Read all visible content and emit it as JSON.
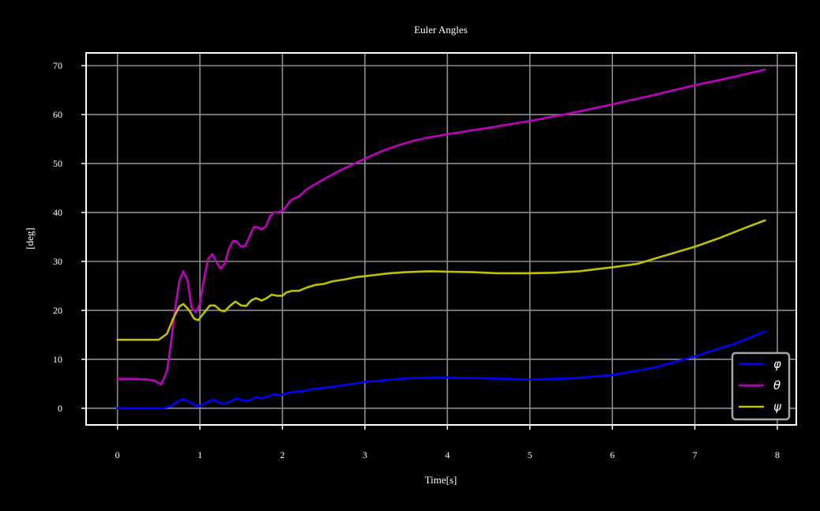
{
  "chart_data": {
    "type": "line",
    "title": "Euler Angles",
    "xlabel": "Time[s]",
    "ylabel": "[deg]",
    "xlim": [
      -0.38,
      8.23
    ],
    "ylim": [
      -3.4,
      72.6
    ],
    "xticks": [
      0,
      1,
      2,
      3,
      4,
      5,
      6,
      7,
      8
    ],
    "yticks": [
      0,
      10,
      20,
      30,
      40,
      50,
      60,
      70
    ],
    "grid": true,
    "legend_position": "bottom-right",
    "background": "#000000",
    "grid_color": "#8c8c8c",
    "series": [
      {
        "name": "φ",
        "color": "#0000ff",
        "points": [
          [
            0,
            0
          ],
          [
            0.3,
            0
          ],
          [
            0.55,
            0
          ],
          [
            0.65,
            0.4
          ],
          [
            0.72,
            1.3
          ],
          [
            0.8,
            1.9
          ],
          [
            0.88,
            1.2
          ],
          [
            0.95,
            0.5
          ],
          [
            1.0,
            0.5
          ],
          [
            1.08,
            1.2
          ],
          [
            1.15,
            1.8
          ],
          [
            1.22,
            1.2
          ],
          [
            1.3,
            0.9
          ],
          [
            1.38,
            1.5
          ],
          [
            1.45,
            2.0
          ],
          [
            1.52,
            1.5
          ],
          [
            1.6,
            1.6
          ],
          [
            1.68,
            2.3
          ],
          [
            1.75,
            2.0
          ],
          [
            1.82,
            2.4
          ],
          [
            1.9,
            2.9
          ],
          [
            1.97,
            2.6
          ],
          [
            2.05,
            3.1
          ],
          [
            2.15,
            3.4
          ],
          [
            2.25,
            3.5
          ],
          [
            2.35,
            3.9
          ],
          [
            2.5,
            4.2
          ],
          [
            2.7,
            4.6
          ],
          [
            3.0,
            5.4
          ],
          [
            3.5,
            6.1
          ],
          [
            3.8,
            6.3
          ],
          [
            4.0,
            6.3
          ],
          [
            4.5,
            6.1
          ],
          [
            5.0,
            5.9
          ],
          [
            5.5,
            6.1
          ],
          [
            6.0,
            6.8
          ],
          [
            6.5,
            8.3
          ],
          [
            7.0,
            10.6
          ],
          [
            7.5,
            13.3
          ],
          [
            7.85,
            15.7
          ]
        ]
      },
      {
        "name": "θ",
        "color": "#c000c0",
        "points": [
          [
            0,
            6.0
          ],
          [
            0.2,
            6.0
          ],
          [
            0.35,
            5.9
          ],
          [
            0.45,
            5.6
          ],
          [
            0.53,
            4.9
          ],
          [
            0.6,
            7.5
          ],
          [
            0.65,
            13.5
          ],
          [
            0.7,
            20.5
          ],
          [
            0.75,
            26.0
          ],
          [
            0.8,
            28.0
          ],
          [
            0.85,
            26.2
          ],
          [
            0.9,
            20.5
          ],
          [
            0.95,
            19.6
          ],
          [
            1.0,
            21.5
          ],
          [
            1.05,
            26.5
          ],
          [
            1.1,
            30.5
          ],
          [
            1.15,
            31.5
          ],
          [
            1.2,
            29.8
          ],
          [
            1.25,
            28.5
          ],
          [
            1.3,
            29.5
          ],
          [
            1.35,
            32.5
          ],
          [
            1.4,
            34.2
          ],
          [
            1.45,
            34.0
          ],
          [
            1.5,
            33.0
          ],
          [
            1.55,
            33.2
          ],
          [
            1.6,
            35.0
          ],
          [
            1.65,
            37.0
          ],
          [
            1.7,
            37.0
          ],
          [
            1.75,
            36.5
          ],
          [
            1.8,
            37.2
          ],
          [
            1.85,
            39.2
          ],
          [
            1.9,
            40.0
          ],
          [
            1.95,
            40.1
          ],
          [
            2.0,
            40.3
          ],
          [
            2.05,
            41.3
          ],
          [
            2.1,
            42.5
          ],
          [
            2.2,
            43.3
          ],
          [
            2.3,
            44.8
          ],
          [
            2.4,
            45.8
          ],
          [
            2.5,
            46.8
          ],
          [
            2.6,
            47.7
          ],
          [
            2.7,
            48.6
          ],
          [
            2.8,
            49.4
          ],
          [
            3.0,
            51.0
          ],
          [
            3.2,
            52.5
          ],
          [
            3.4,
            53.7
          ],
          [
            3.6,
            54.7
          ],
          [
            3.8,
            55.4
          ],
          [
            4.0,
            56.0
          ],
          [
            4.5,
            57.3
          ],
          [
            5.0,
            58.7
          ],
          [
            5.5,
            60.3
          ],
          [
            6.0,
            62.1
          ],
          [
            6.5,
            64.0
          ],
          [
            7.0,
            66.0
          ],
          [
            7.5,
            67.8
          ],
          [
            7.85,
            69.2
          ]
        ]
      },
      {
        "name": "ψ",
        "color": "#c0c000",
        "points": [
          [
            0,
            14.0
          ],
          [
            0.3,
            14.0
          ],
          [
            0.5,
            14.0
          ],
          [
            0.6,
            15.2
          ],
          [
            0.68,
            18.5
          ],
          [
            0.75,
            20.8
          ],
          [
            0.8,
            21.3
          ],
          [
            0.87,
            20.0
          ],
          [
            0.93,
            18.3
          ],
          [
            0.98,
            18.0
          ],
          [
            1.05,
            19.5
          ],
          [
            1.12,
            21.0
          ],
          [
            1.18,
            21.0
          ],
          [
            1.25,
            20.0
          ],
          [
            1.3,
            19.8
          ],
          [
            1.37,
            21.0
          ],
          [
            1.43,
            21.8
          ],
          [
            1.5,
            21.0
          ],
          [
            1.56,
            20.9
          ],
          [
            1.62,
            22.0
          ],
          [
            1.68,
            22.5
          ],
          [
            1.75,
            22.0
          ],
          [
            1.8,
            22.4
          ],
          [
            1.87,
            23.2
          ],
          [
            1.93,
            23.0
          ],
          [
            2.0,
            23.0
          ],
          [
            2.05,
            23.7
          ],
          [
            2.12,
            24.0
          ],
          [
            2.2,
            24.0
          ],
          [
            2.3,
            24.7
          ],
          [
            2.4,
            25.2
          ],
          [
            2.5,
            25.4
          ],
          [
            2.6,
            25.9
          ],
          [
            2.75,
            26.3
          ],
          [
            2.9,
            26.8
          ],
          [
            3.1,
            27.2
          ],
          [
            3.3,
            27.6
          ],
          [
            3.5,
            27.8
          ],
          [
            3.8,
            28.0
          ],
          [
            4.0,
            27.9
          ],
          [
            4.3,
            27.8
          ],
          [
            4.6,
            27.6
          ],
          [
            5.0,
            27.6
          ],
          [
            5.3,
            27.7
          ],
          [
            5.6,
            28.0
          ],
          [
            6.0,
            28.8
          ],
          [
            6.3,
            29.5
          ],
          [
            6.6,
            31.0
          ],
          [
            7.0,
            33.0
          ],
          [
            7.3,
            34.8
          ],
          [
            7.6,
            36.8
          ],
          [
            7.85,
            38.4
          ]
        ]
      }
    ]
  }
}
